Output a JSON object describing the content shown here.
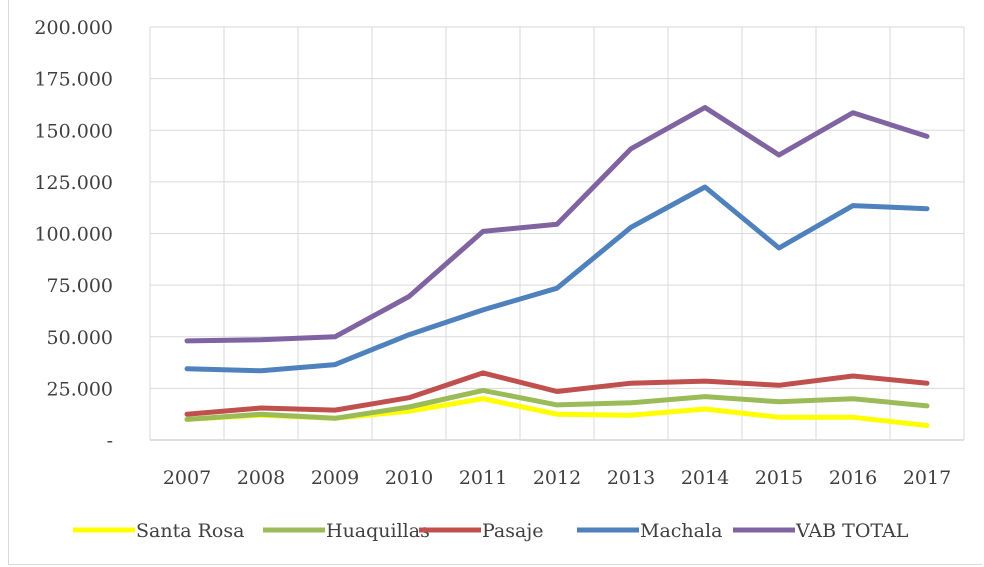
{
  "chart_data": {
    "type": "line",
    "title": "",
    "xlabel": "",
    "ylabel": "",
    "categories": [
      "2007",
      "2008",
      "2009",
      "2010",
      "2011",
      "2012",
      "2013",
      "2014",
      "2015",
      "2016",
      "2017"
    ],
    "ylim": [
      0,
      200000
    ],
    "yticks": [
      0,
      25000,
      50000,
      75000,
      100000,
      125000,
      150000,
      175000,
      200000
    ],
    "ytick_labels": [
      "-",
      "25.000",
      "50.000",
      "75.000",
      "100.000",
      "125.000",
      "150.000",
      "175.000",
      "200.000"
    ],
    "grid": true,
    "legend_position": "bottom",
    "series": [
      {
        "name": "Santa Rosa",
        "color": "#ffff00",
        "values": [
          10000,
          12000,
          10500,
          14000,
          20000,
          12500,
          12000,
          15000,
          11000,
          11000,
          7000
        ]
      },
      {
        "name": "Huaquillas",
        "color": "#9bbb59",
        "values": [
          10000,
          12500,
          10500,
          16000,
          24000,
          17000,
          18000,
          21000,
          18500,
          20000,
          16500
        ]
      },
      {
        "name": "Pasaje",
        "color": "#c0504d",
        "values": [
          12500,
          15500,
          14500,
          20500,
          32500,
          23500,
          27500,
          28500,
          26500,
          31000,
          27500
        ]
      },
      {
        "name": "Machala",
        "color": "#4f81bd",
        "values": [
          34500,
          33500,
          36500,
          51000,
          63000,
          73500,
          103000,
          122500,
          93000,
          113500,
          112000
        ]
      },
      {
        "name": "VAB TOTAL",
        "color": "#8064a2",
        "values": [
          48000,
          48500,
          50000,
          69500,
          101000,
          104500,
          141000,
          161000,
          138000,
          158500,
          147000
        ]
      }
    ]
  }
}
